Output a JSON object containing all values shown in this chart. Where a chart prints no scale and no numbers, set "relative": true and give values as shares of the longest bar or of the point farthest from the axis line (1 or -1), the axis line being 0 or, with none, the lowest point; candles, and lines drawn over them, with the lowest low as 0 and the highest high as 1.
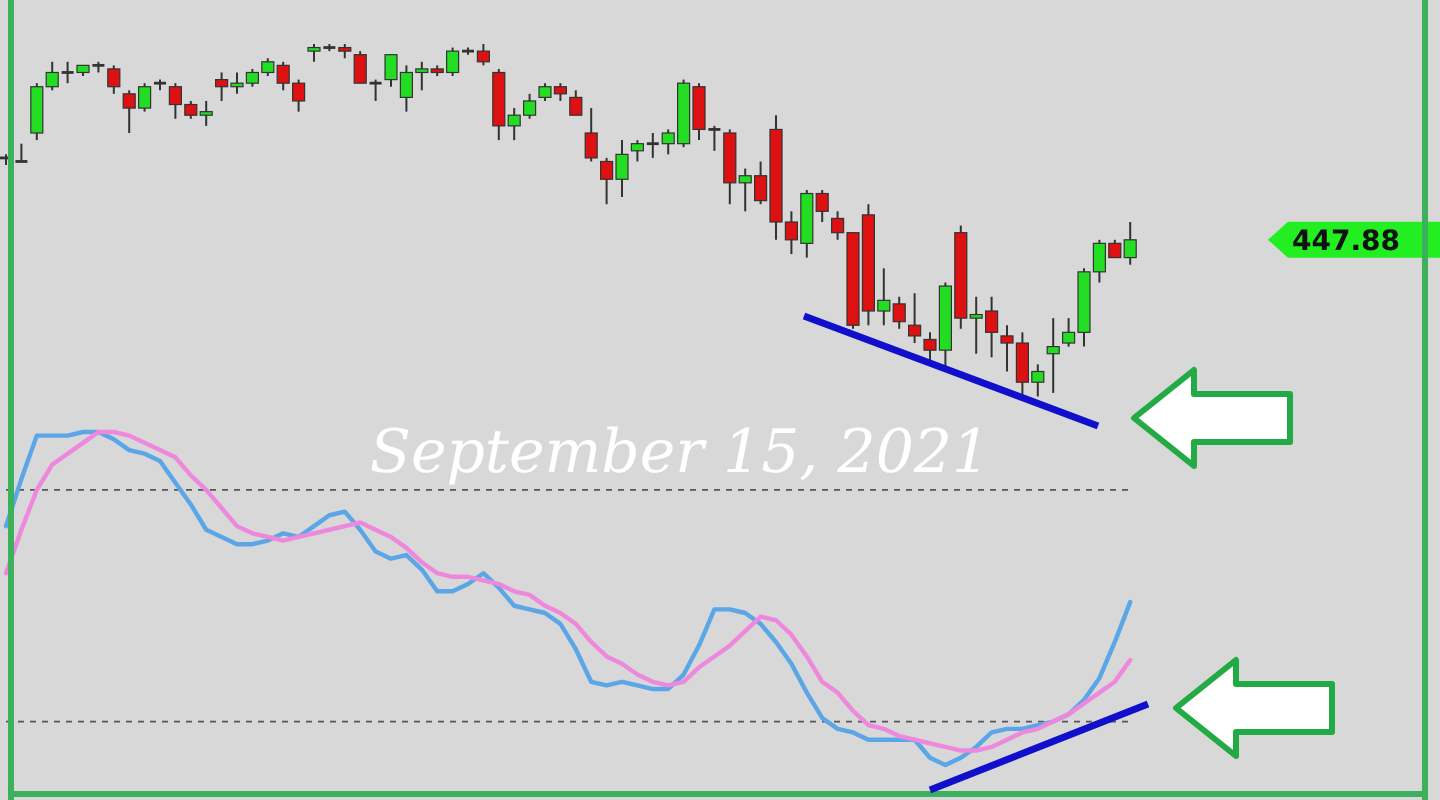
{
  "chart_data": [
    {
      "type": "candlestick",
      "relative": true,
      "annotations": [
        "447.88"
      ],
      "categories": [
        null,
        null,
        null,
        null,
        null,
        null,
        null,
        null,
        null,
        null,
        null,
        null,
        null,
        null,
        null,
        null,
        null,
        null,
        null,
        null,
        null,
        null,
        null,
        null,
        null,
        null,
        null,
        null,
        null,
        null,
        null,
        null,
        null,
        null,
        null,
        null,
        null,
        null,
        null,
        null,
        null,
        null,
        null,
        null,
        null,
        null,
        null,
        null,
        null,
        null,
        null,
        null,
        null,
        null,
        null,
        null,
        null,
        null,
        null,
        null,
        null,
        null,
        null,
        null,
        null,
        null,
        null,
        null,
        null,
        null,
        null,
        null,
        null,
        null
      ],
      "ohlc": [
        [
          0.68,
          0.69,
          0.66,
          0.68
        ],
        [
          0.67,
          0.72,
          0.67,
          0.67
        ],
        [
          0.75,
          0.89,
          0.73,
          0.88
        ],
        [
          0.88,
          0.95,
          0.87,
          0.92
        ],
        [
          0.92,
          0.95,
          0.89,
          0.92
        ],
        [
          0.92,
          0.94,
          0.91,
          0.94
        ],
        [
          0.94,
          0.95,
          0.92,
          0.94
        ],
        [
          0.93,
          0.94,
          0.86,
          0.88
        ],
        [
          0.86,
          0.87,
          0.75,
          0.82
        ],
        [
          0.82,
          0.89,
          0.81,
          0.88
        ],
        [
          0.89,
          0.9,
          0.87,
          0.89
        ],
        [
          0.88,
          0.89,
          0.79,
          0.83
        ],
        [
          0.83,
          0.84,
          0.79,
          0.8
        ],
        [
          0.8,
          0.84,
          0.77,
          0.81
        ],
        [
          0.9,
          0.92,
          0.84,
          0.88
        ],
        [
          0.88,
          0.92,
          0.86,
          0.89
        ],
        [
          0.89,
          0.93,
          0.88,
          0.92
        ],
        [
          0.92,
          0.96,
          0.91,
          0.95
        ],
        [
          0.94,
          0.95,
          0.87,
          0.89
        ],
        [
          0.89,
          0.9,
          0.81,
          0.84
        ],
        [
          0.98,
          1.0,
          0.95,
          0.99
        ],
        [
          0.99,
          1.0,
          0.98,
          0.99
        ],
        [
          0.99,
          1.0,
          0.96,
          0.98
        ],
        [
          0.97,
          0.98,
          0.89,
          0.89
        ],
        [
          0.89,
          0.9,
          0.84,
          0.89
        ],
        [
          0.9,
          0.97,
          0.88,
          0.97
        ],
        [
          0.85,
          0.94,
          0.81,
          0.92
        ],
        [
          0.92,
          0.95,
          0.87,
          0.93
        ],
        [
          0.93,
          0.94,
          0.91,
          0.92
        ],
        [
          0.92,
          0.99,
          0.91,
          0.98
        ],
        [
          0.98,
          0.99,
          0.97,
          0.98
        ],
        [
          0.98,
          1.0,
          0.94,
          0.95
        ],
        [
          0.92,
          0.93,
          0.73,
          0.77
        ],
        [
          0.77,
          0.82,
          0.73,
          0.8
        ],
        [
          0.8,
          0.86,
          0.79,
          0.84
        ],
        [
          0.85,
          0.89,
          0.84,
          0.88
        ],
        [
          0.88,
          0.89,
          0.84,
          0.86
        ],
        [
          0.85,
          0.87,
          0.8,
          0.8
        ],
        [
          0.75,
          0.82,
          0.67,
          0.68
        ],
        [
          0.67,
          0.68,
          0.55,
          0.62
        ],
        [
          0.62,
          0.73,
          0.57,
          0.69
        ],
        [
          0.7,
          0.73,
          0.67,
          0.72
        ],
        [
          0.72,
          0.75,
          0.68,
          0.72
        ],
        [
          0.72,
          0.76,
          0.69,
          0.75
        ],
        [
          0.72,
          0.9,
          0.71,
          0.89
        ],
        [
          0.88,
          0.89,
          0.73,
          0.76
        ],
        [
          0.76,
          0.77,
          0.7,
          0.76
        ],
        [
          0.75,
          0.76,
          0.55,
          0.61
        ],
        [
          0.61,
          0.65,
          0.53,
          0.63
        ],
        [
          0.63,
          0.67,
          0.55,
          0.56
        ],
        [
          0.76,
          0.8,
          0.45,
          0.5
        ],
        [
          0.5,
          0.53,
          0.41,
          0.45
        ],
        [
          0.44,
          0.59,
          0.4,
          0.58
        ],
        [
          0.58,
          0.59,
          0.5,
          0.53
        ],
        [
          0.51,
          0.53,
          0.45,
          0.47
        ],
        [
          0.47,
          0.47,
          0.2,
          0.21
        ],
        [
          0.52,
          0.55,
          0.21,
          0.25
        ],
        [
          0.25,
          0.37,
          0.21,
          0.28
        ],
        [
          0.27,
          0.29,
          0.2,
          0.22
        ],
        [
          0.21,
          0.3,
          0.16,
          0.18
        ],
        [
          0.17,
          0.19,
          0.11,
          0.14
        ],
        [
          0.14,
          0.33,
          0.08,
          0.32
        ],
        [
          0.47,
          0.49,
          0.2,
          0.23
        ],
        [
          0.23,
          0.29,
          0.13,
          0.24
        ],
        [
          0.25,
          0.29,
          0.12,
          0.19
        ],
        [
          0.18,
          0.21,
          0.08,
          0.16
        ],
        [
          0.16,
          0.19,
          0.0,
          0.05
        ],
        [
          0.05,
          0.1,
          0.01,
          0.08
        ],
        [
          0.13,
          0.23,
          0.02,
          0.15
        ],
        [
          0.16,
          0.23,
          0.15,
          0.19
        ],
        [
          0.19,
          0.37,
          0.15,
          0.36
        ],
        [
          0.36,
          0.45,
          0.33,
          0.44
        ],
        [
          0.44,
          0.45,
          0.4,
          0.4
        ],
        [
          0.4,
          0.5,
          0.38,
          0.45
        ]
      ]
    },
    {
      "type": "line",
      "title": "September 15, 2021",
      "relative": true,
      "categories": [
        null,
        null,
        null,
        null,
        null,
        null,
        null,
        null,
        null,
        null,
        null,
        null,
        null,
        null,
        null,
        null,
        null,
        null,
        null,
        null,
        null,
        null,
        null,
        null,
        null,
        null,
        null,
        null,
        null,
        null,
        null,
        null,
        null,
        null,
        null,
        null,
        null,
        null,
        null,
        null,
        null,
        null,
        null,
        null,
        null,
        null,
        null,
        null,
        null,
        null,
        null,
        null,
        null,
        null,
        null,
        null,
        null,
        null,
        null,
        null,
        null,
        null,
        null,
        null,
        null,
        null,
        null,
        null,
        null,
        null,
        null,
        null,
        null,
        null
      ],
      "ref_lines": [
        {
          "axis": "y",
          "value": 0.84,
          "line_style": "dashed",
          "color": "#555555"
        },
        {
          "axis": "y",
          "value": 0.2,
          "line_style": "dashed",
          "color": "#555555"
        }
      ],
      "series": [
        {
          "color": "#5aa6e6",
          "values": [
            0.74,
            0.87,
            0.99,
            0.99,
            0.99,
            1.0,
            1.0,
            0.98,
            0.95,
            0.94,
            0.92,
            0.86,
            0.8,
            0.73,
            0.71,
            0.69,
            0.69,
            0.7,
            0.72,
            0.71,
            0.74,
            0.77,
            0.78,
            0.73,
            0.67,
            0.65,
            0.66,
            0.62,
            0.56,
            0.56,
            0.58,
            0.61,
            0.57,
            0.52,
            0.51,
            0.5,
            0.47,
            0.4,
            0.31,
            0.3,
            0.31,
            0.3,
            0.29,
            0.29,
            0.33,
            0.41,
            0.51,
            0.51,
            0.5,
            0.47,
            0.42,
            0.36,
            0.28,
            0.21,
            0.18,
            0.17,
            0.15,
            0.15,
            0.15,
            0.15,
            0.1,
            0.08,
            0.1,
            0.13,
            0.17,
            0.18,
            0.18,
            0.19,
            0.2,
            0.22,
            0.26,
            0.32,
            0.42,
            0.53
          ]
        },
        {
          "color": "#ee88dd",
          "values": [
            0.61,
            0.73,
            0.84,
            0.91,
            0.94,
            0.97,
            1.0,
            1.0,
            0.99,
            0.97,
            0.95,
            0.93,
            0.88,
            0.84,
            0.79,
            0.74,
            0.72,
            0.71,
            0.7,
            0.71,
            0.72,
            0.73,
            0.74,
            0.75,
            0.73,
            0.71,
            0.68,
            0.64,
            0.61,
            0.6,
            0.6,
            0.59,
            0.58,
            0.56,
            0.55,
            0.52,
            0.5,
            0.47,
            0.42,
            0.38,
            0.36,
            0.33,
            0.31,
            0.3,
            0.31,
            0.35,
            0.38,
            0.41,
            0.45,
            0.49,
            0.48,
            0.44,
            0.38,
            0.31,
            0.28,
            0.23,
            0.19,
            0.18,
            0.16,
            0.15,
            0.14,
            0.13,
            0.12,
            0.12,
            0.13,
            0.15,
            0.17,
            0.18,
            0.2,
            0.22,
            0.25,
            0.28,
            0.31,
            0.37
          ]
        }
      ]
    }
  ]
}
